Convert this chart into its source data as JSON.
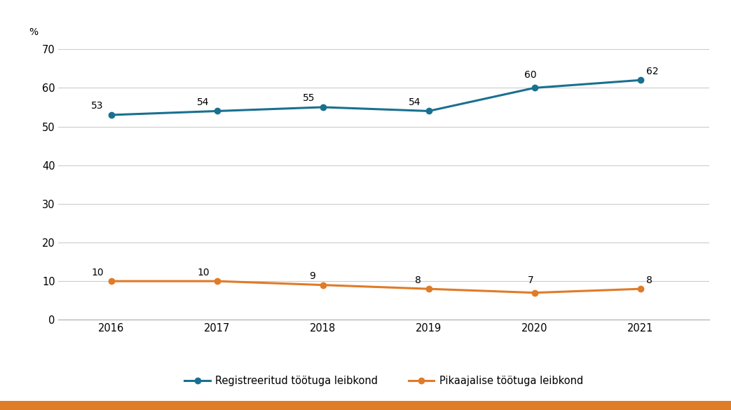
{
  "years": [
    2016,
    2017,
    2018,
    2019,
    2020,
    2021
  ],
  "series1_values": [
    53,
    54,
    55,
    54,
    60,
    62
  ],
  "series2_values": [
    10,
    10,
    9,
    8,
    7,
    8
  ],
  "series1_label": "Registreeritud töötuga leibkond",
  "series2_label": "Pikaajalise töötuga leibkond",
  "series1_color": "#1a7090",
  "series2_color": "#e07b28",
  "ylabel": "%",
  "ylim": [
    0,
    70
  ],
  "yticks": [
    0,
    10,
    20,
    30,
    40,
    50,
    60,
    70
  ],
  "background_color": "#ffffff",
  "plot_bg_color": "#ffffff",
  "grid_color": "#cccccc",
  "bottom_bar_color": "#e07b28",
  "label_fontsize": 10,
  "tick_fontsize": 10.5,
  "legend_fontsize": 10.5,
  "marker_size": 6,
  "line_width": 2.2
}
